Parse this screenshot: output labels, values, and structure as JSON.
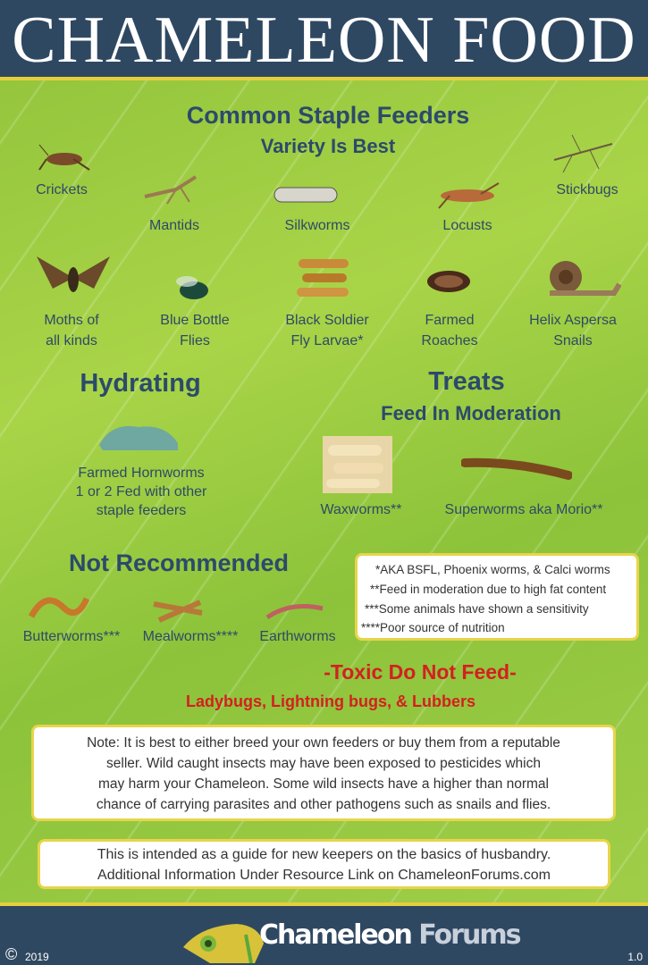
{
  "title": "CHAMELEON FOOD",
  "staple": {
    "heading": "Common Staple Feeders",
    "subheading": "Variety Is Best",
    "items": [
      {
        "label": "Crickets",
        "icon": "cricket-icon"
      },
      {
        "label": "Mantids",
        "icon": "mantis-icon"
      },
      {
        "label": "Silkworms",
        "icon": "silkworm-icon"
      },
      {
        "label": "Locusts",
        "icon": "locust-icon"
      },
      {
        "label": "Stickbugs",
        "icon": "stickbug-icon"
      },
      {
        "label": "Moths of",
        "label2": "all kinds",
        "icon": "moth-icon"
      },
      {
        "label": "Blue Bottle",
        "label2": "Flies",
        "icon": "fly-icon"
      },
      {
        "label": "Black Soldier",
        "label2": "Fly Larvae*",
        "icon": "larvae-icon"
      },
      {
        "label": "Farmed",
        "label2": "Roaches",
        "icon": "roach-icon"
      },
      {
        "label": "Helix Aspersa",
        "label2": "Snails",
        "icon": "snail-icon"
      }
    ]
  },
  "hydrating": {
    "heading": "Hydrating",
    "lines": [
      "Farmed Hornworms",
      "1 or 2 Fed with other",
      "staple feeders"
    ]
  },
  "treats": {
    "heading": "Treats",
    "subheading": "Feed In Moderation",
    "items": [
      "Waxworms**",
      "Superworms aka Morio**"
    ]
  },
  "not_recommended": {
    "heading": "Not Recommended",
    "items": [
      "Butterworms***",
      "Mealworms****",
      "Earthworms"
    ]
  },
  "footnotes": [
    "*AKA BSFL, Phoenix worms, & Calci worms",
    "**Feed in moderation due to high fat content",
    "***Some animals have shown a sensitivity",
    "****Poor source of nutrition"
  ],
  "toxic": {
    "heading": "-Toxic Do Not Feed-",
    "items": "Ladybugs, Lightning bugs, & Lubbers"
  },
  "note": [
    "Note: It is best to either breed your own feeders or buy them from a reputable",
    "seller. Wild caught insects may have been exposed to pesticides which",
    "may harm your Chameleon. Some wild insects have a higher than normal",
    "chance of carrying parasites and other pathogens such as snails and flies."
  ],
  "info": [
    "This is intended as a guide for new keepers on the basics of husbandry.",
    "Additional Information Under Resource Link on ChameleonForums.com"
  ],
  "footer": {
    "copyright": "©",
    "year": "2019",
    "logo_text": "Chameleon Forums",
    "logo_word1": "Chameleon",
    "logo_word2": "Forums",
    "version": "1.0"
  },
  "colors": {
    "header_bg": "#2f4862",
    "heading": "#2c4a6b",
    "toxic": "#d42020",
    "border": "#e8d44a"
  }
}
